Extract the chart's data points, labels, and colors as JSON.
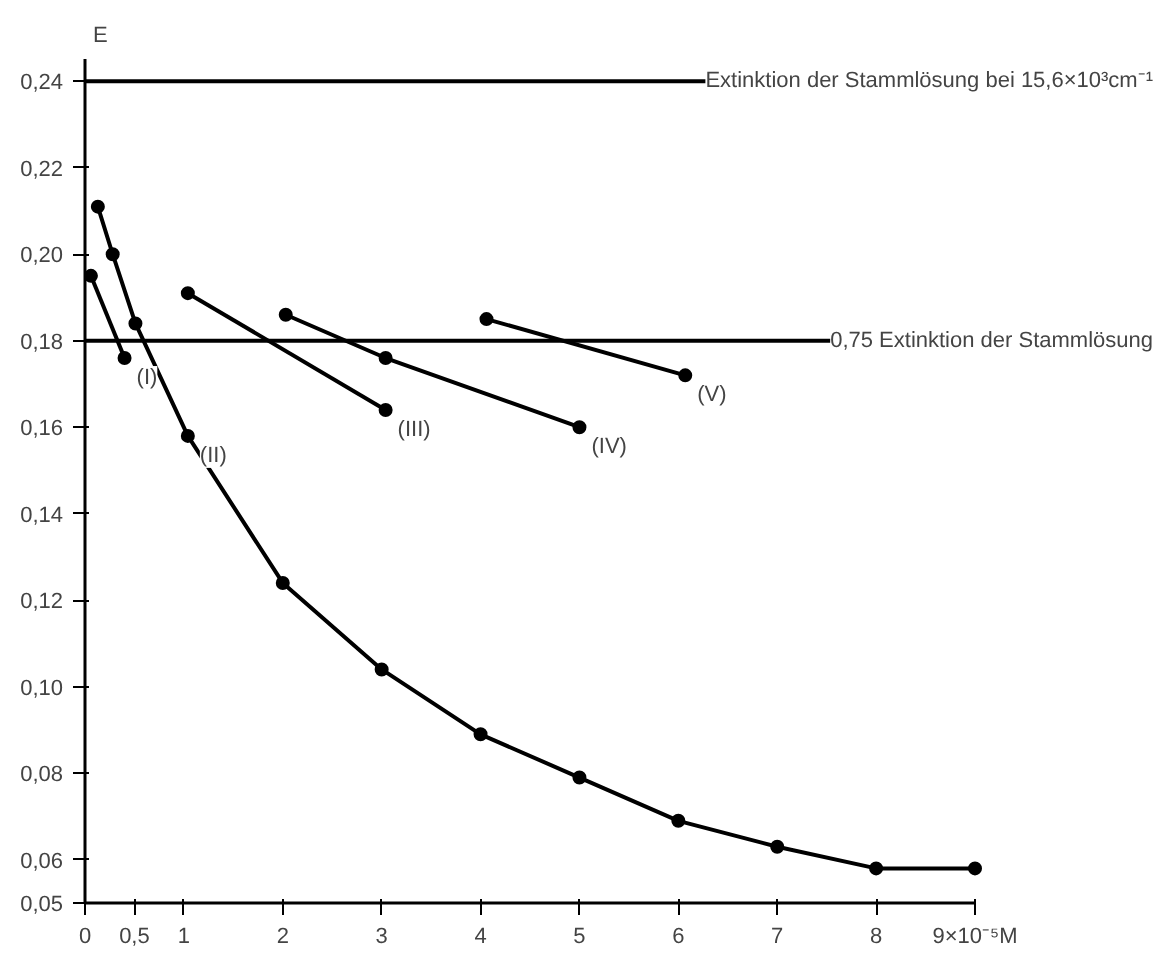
{
  "chart_data": {
    "type": "line",
    "ylabel": "E",
    "xlim": [
      0,
      9
    ],
    "xticks": [
      {
        "value": 0,
        "label": "0"
      },
      {
        "value": 0.5,
        "label": "0,5"
      },
      1,
      2,
      3,
      4,
      5,
      6,
      7,
      8,
      {
        "value": 9,
        "label": "9×10⁻⁵M"
      }
    ],
    "ylim": [
      0.05,
      0.245
    ],
    "yticks": [
      {
        "value": 0.05,
        "label": "0,05"
      },
      {
        "value": 0.06,
        "label": "0,06"
      },
      {
        "value": 0.08,
        "label": "0,08"
      },
      {
        "value": 0.1,
        "label": "0,10"
      },
      {
        "value": 0.12,
        "label": "0,12"
      },
      {
        "value": 0.14,
        "label": "0,14"
      },
      {
        "value": 0.16,
        "label": "0,16"
      },
      {
        "value": 0.18,
        "label": "0,18"
      },
      {
        "value": 0.2,
        "label": "0,20"
      },
      {
        "value": 0.22,
        "label": "0,22"
      },
      {
        "value": 0.24,
        "label": "0,24"
      }
    ],
    "series": [
      {
        "color": "#000000",
        "x": [
          0.06,
          0.4
        ],
        "values": [
          0.195,
          0.176
        ]
      },
      {
        "color": "#000000",
        "x": [
          0.13,
          0.28,
          0.51,
          1.04,
          2,
          3,
          4,
          5,
          6,
          7,
          8,
          9
        ],
        "values": [
          0.211,
          0.2,
          0.184,
          0.158,
          0.124,
          0.104,
          0.089,
          0.079,
          0.069,
          0.063,
          0.058,
          0.058
        ]
      },
      {
        "color": "#000000",
        "x": [
          1.04,
          3.04
        ],
        "values": [
          0.191,
          0.164
        ]
      },
      {
        "color": "#000000",
        "x": [
          2.03,
          3.04,
          5.0
        ],
        "values": [
          0.186,
          0.176,
          0.16
        ]
      },
      {
        "color": "#000000",
        "x": [
          4.06,
          6.07
        ],
        "values": [
          0.185,
          0.172
        ]
      }
    ],
    "ref_lines": [
      {
        "axis": "y",
        "value": 0.24,
        "label": "Extinktion der Stammlösung bei 15,6×10³cm⁻¹",
        "color": "#000000"
      },
      {
        "axis": "y",
        "value": 0.18,
        "label": "0,75 Extinktion der Stammlösung",
        "color": "#000000"
      }
    ],
    "annotations": [
      {
        "text": "(I)",
        "x": 0.4,
        "y": 0.176
      },
      {
        "text": "(II)",
        "x": 1.04,
        "y": 0.158
      },
      {
        "text": "(III)",
        "x": 3.04,
        "y": 0.164
      },
      {
        "text": "(IV)",
        "x": 5.0,
        "y": 0.16
      },
      {
        "text": "(V)",
        "x": 6.07,
        "y": 0.172
      }
    ],
    "marker": "circle",
    "line_style": "solid",
    "grid": false
  }
}
